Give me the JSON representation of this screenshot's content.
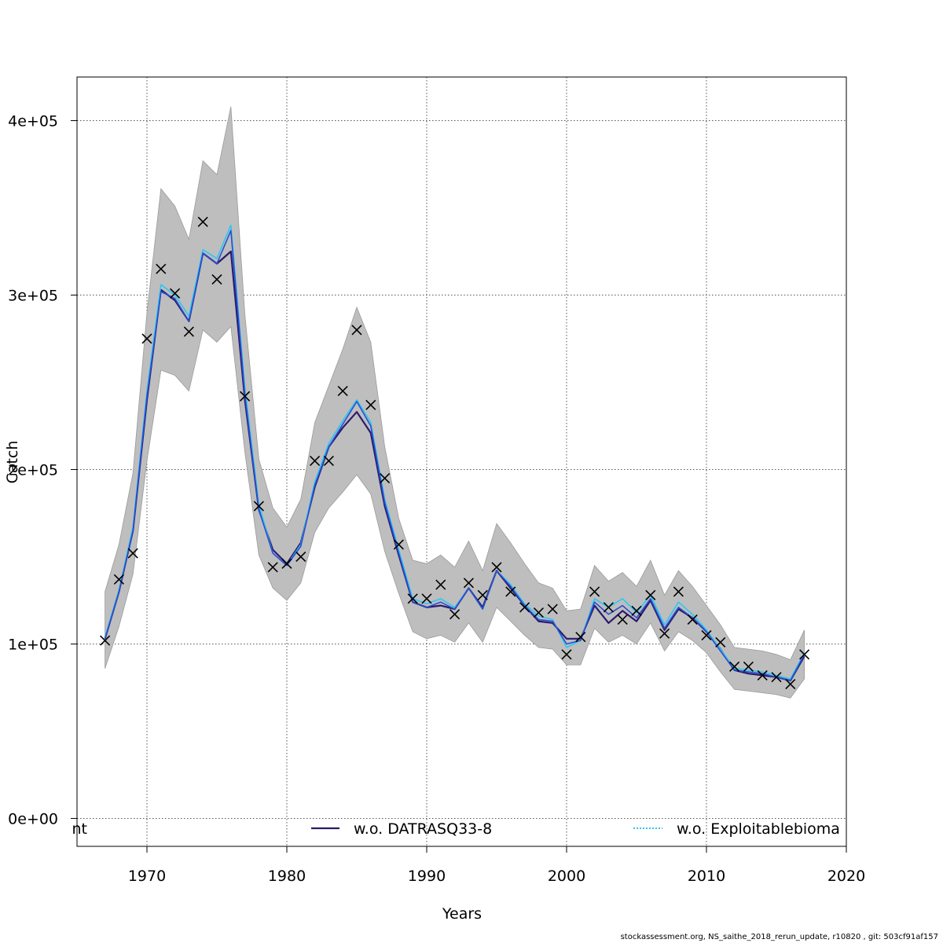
{
  "chart_data": {
    "type": "line",
    "xlabel": "Years",
    "ylabel": "Catch",
    "xlim": [
      1965,
      2020
    ],
    "ylim": [
      -16000,
      425000
    ],
    "x_ticks": [
      1970,
      1980,
      1990,
      2000,
      2010,
      2020
    ],
    "x_tick_labels": [
      "1970",
      "1980",
      "1990",
      "2000",
      "2010",
      "2020"
    ],
    "y_ticks": [
      0,
      100000,
      200000,
      300000,
      400000
    ],
    "y_tick_labels": [
      "0e+00",
      "1e+05",
      "2e+05",
      "3e+05",
      "4e+05"
    ],
    "grid": true,
    "x": [
      1967,
      1968,
      1969,
      1970,
      1971,
      1972,
      1973,
      1974,
      1975,
      1976,
      1977,
      1978,
      1979,
      1980,
      1981,
      1982,
      1983,
      1984,
      1985,
      1986,
      1987,
      1988,
      1989,
      1990,
      1991,
      1992,
      1993,
      1994,
      1995,
      1996,
      1997,
      1998,
      1999,
      2000,
      2001,
      2002,
      2003,
      2004,
      2005,
      2006,
      2007,
      2008,
      2009,
      2010,
      2011,
      2012,
      2013,
      2014,
      2015,
      2016,
      2017
    ],
    "ci_band": {
      "upper": [
        130000,
        157000,
        198000,
        290000,
        361000,
        351000,
        332000,
        377000,
        369000,
        408000,
        289000,
        206000,
        178000,
        167000,
        183000,
        227000,
        248000,
        269000,
        293000,
        273000,
        213000,
        172000,
        148000,
        146000,
        151000,
        144000,
        159000,
        142000,
        169000,
        158000,
        146000,
        135000,
        132000,
        119000,
        120000,
        145000,
        136000,
        141000,
        133000,
        148000,
        128000,
        142000,
        133000,
        122000,
        111000,
        98000,
        97000,
        96000,
        94000,
        91000,
        108000
      ],
      "lower": [
        86000,
        110000,
        140000,
        205000,
        257000,
        254000,
        245000,
        280000,
        273000,
        282000,
        210000,
        151000,
        132000,
        125000,
        135000,
        164000,
        178000,
        187000,
        197000,
        186000,
        153000,
        129000,
        107000,
        103000,
        105000,
        101000,
        112000,
        101000,
        121000,
        113000,
        105000,
        98000,
        97000,
        88000,
        88000,
        109000,
        101000,
        105000,
        100000,
        112000,
        96000,
        107000,
        102000,
        95000,
        84000,
        74000,
        73000,
        72000,
        71000,
        69000,
        80000
      ]
    },
    "series": [
      {
        "name": "w.o. DATRASQ33-8",
        "color": "#2b1a6e",
        "values": [
          103000,
          130000,
          165000,
          240000,
          303000,
          297000,
          285000,
          324000,
          318000,
          325000,
          240000,
          177000,
          154000,
          146000,
          158000,
          190000,
          213000,
          224000,
          233000,
          221000,
          179000,
          151000,
          124000,
          121000,
          122000,
          120000,
          132000,
          121000,
          142000,
          132000,
          122000,
          113000,
          112000,
          103000,
          103000,
          122000,
          112000,
          119000,
          113000,
          125000,
          108000,
          120000,
          115000,
          107000,
          97000,
          85000,
          83000,
          82000,
          81000,
          79000,
          93000
        ]
      },
      {
        "name": "w.o. Exploitablebiomass",
        "color": "#2ec7f2",
        "values": [
          104000,
          131000,
          167000,
          245000,
          306000,
          300000,
          288000,
          326000,
          321000,
          340000,
          247000,
          180000,
          152000,
          145000,
          157000,
          193000,
          215000,
          228000,
          240000,
          227000,
          183000,
          154000,
          126000,
          123000,
          126000,
          121000,
          132000,
          120000,
          142000,
          134000,
          123000,
          116000,
          114000,
          98000,
          102000,
          126000,
          121000,
          126000,
          118000,
          128000,
          111000,
          124000,
          117000,
          108000,
          97000,
          86000,
          85000,
          84000,
          82000,
          80000,
          95000
        ]
      },
      {
        "name": "",
        "color": "#2a4fd2",
        "values": [
          103000,
          130000,
          165000,
          242000,
          302000,
          298000,
          285000,
          324000,
          318000,
          337000,
          243000,
          177000,
          152000,
          145000,
          156000,
          191000,
          213000,
          226000,
          239000,
          225000,
          181000,
          152000,
          124000,
          121000,
          124000,
          120000,
          132000,
          120000,
          142000,
          133000,
          122000,
          114000,
          113000,
          100000,
          102000,
          124000,
          117000,
          122000,
          115000,
          126000,
          109000,
          121000,
          115000,
          107000,
          96000,
          85000,
          84000,
          83000,
          81000,
          79000,
          94000
        ]
      }
    ],
    "observations": {
      "marker": "x",
      "values": [
        102000,
        137000,
        152000,
        275000,
        315000,
        301000,
        279000,
        342000,
        309000,
        null,
        242000,
        179000,
        144000,
        146000,
        150000,
        205000,
        205000,
        245000,
        280000,
        237000,
        195000,
        157000,
        126000,
        126000,
        134000,
        117000,
        135000,
        128000,
        144000,
        130000,
        121000,
        118000,
        120000,
        94000,
        104000,
        130000,
        121000,
        114000,
        119000,
        128000,
        106000,
        130000,
        114000,
        105000,
        101000,
        87000,
        87000,
        82000,
        81000,
        77000,
        94000
      ]
    },
    "legend": {
      "position": "bottom",
      "items": [
        {
          "label": "nt",
          "color": "#2a4fd2"
        },
        {
          "label": "w.o. DATRASQ33-8",
          "color": "#2b1a6e"
        },
        {
          "label": "w.o. Exploitablebioma",
          "color": "#2ec7f2"
        }
      ]
    }
  },
  "footer": "stockassessment.org, NS_saithe_2018_rerun_update, r10820 , git: 503cf91af157"
}
